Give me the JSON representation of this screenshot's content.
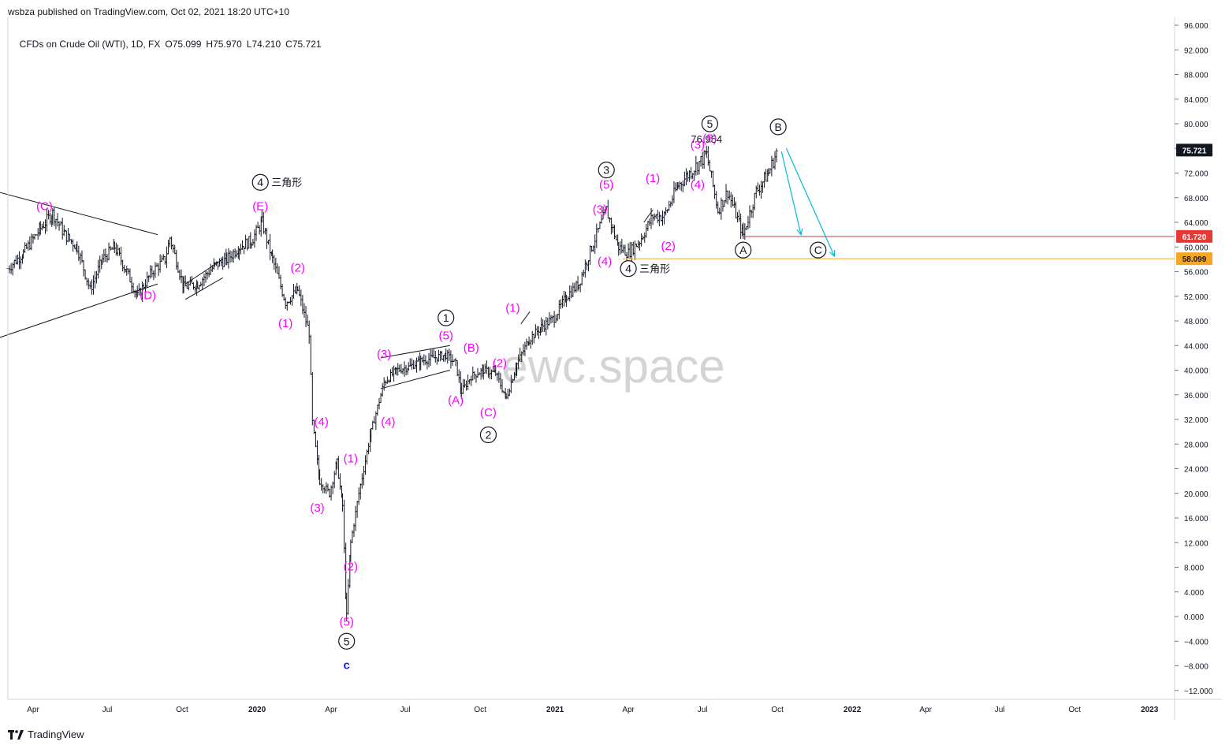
{
  "header": {
    "published": "wsbza published on TradingView.com, Oct 02, 2021 18:20 UTC+10",
    "symbol": "CFDs on Crude Oil (WTI), 1D, FX",
    "open": "O75.099",
    "high": "H75.970",
    "low": "L74.210",
    "close": "C75.721"
  },
  "footer": {
    "brand": "TradingView",
    "brand_icon": "tradingview-logo-icon"
  },
  "watermark": "ewc.space",
  "colors": {
    "candle": "#131722",
    "wave_magenta": "#ff00ff",
    "level_red": "#e53935",
    "level_orange": "#f5a623",
    "arrow_cyan": "#00bcd4",
    "blue_label": "#1a1aff",
    "axis_text": "#131722"
  },
  "chart_data": {
    "type": "line",
    "title": "CFDs on Crude Oil (WTI)",
    "interval": "1D",
    "y_axis": {
      "min": -12,
      "max": 96,
      "ticks": [
        "96.000",
        "92.000",
        "88.000",
        "84.000",
        "80.000",
        "76.000",
        "72.000",
        "68.000",
        "64.000",
        "60.000",
        "56.000",
        "52.000",
        "48.000",
        "44.000",
        "40.000",
        "36.000",
        "32.000",
        "28.000",
        "24.000",
        "20.000",
        "16.000",
        "12.000",
        "8.000",
        "4.000",
        "0.000",
        "−4.000",
        "−8.000",
        "−12.000"
      ],
      "tick_values": [
        96,
        92,
        88,
        84,
        80,
        76,
        72,
        68,
        64,
        60,
        56,
        52,
        48,
        44,
        40,
        36,
        32,
        28,
        24,
        20,
        16,
        12,
        8,
        4,
        0,
        -4,
        -8,
        -12
      ]
    },
    "x_axis": {
      "labels": [
        "Apr",
        "Jul",
        "Oct",
        "2020",
        "Apr",
        "Jul",
        "Oct",
        "2021",
        "Apr",
        "Jul",
        "Oct",
        "2022",
        "Apr",
        "Jul",
        "Oct",
        "2023"
      ],
      "label_dates": [
        "2019-04-01",
        "2019-07-01",
        "2019-10-01",
        "2020-01-01",
        "2020-04-01",
        "2020-07-01",
        "2020-10-01",
        "2021-01-01",
        "2021-04-01",
        "2021-07-01",
        "2021-10-01",
        "2022-01-01",
        "2022-04-01",
        "2022-07-01",
        "2022-10-01",
        "2023-01-01"
      ]
    },
    "series": [
      {
        "x": [
          "2019-03-01",
          "2019-03-20",
          "2019-04-10",
          "2019-04-25",
          "2019-05-10",
          "2019-05-25",
          "2019-06-10",
          "2019-06-25",
          "2019-07-10",
          "2019-07-25",
          "2019-08-07",
          "2019-08-25",
          "2019-09-10",
          "2019-09-16",
          "2019-10-03",
          "2019-10-20",
          "2019-11-10",
          "2019-11-25",
          "2019-12-10",
          "2019-12-25",
          "2020-01-07",
          "2020-01-20",
          "2020-02-05",
          "2020-02-20",
          "2020-03-05",
          "2020-03-09",
          "2020-03-18",
          "2020-03-30",
          "2020-04-08",
          "2020-04-15",
          "2020-04-20",
          "2020-04-25",
          "2020-05-05",
          "2020-05-20",
          "2020-06-05",
          "2020-06-20",
          "2020-07-05",
          "2020-07-20",
          "2020-08-05",
          "2020-08-20",
          "2020-09-01",
          "2020-09-08",
          "2020-09-20",
          "2020-10-05",
          "2020-10-20",
          "2020-11-02",
          "2020-11-15",
          "2020-11-30",
          "2020-12-15",
          "2020-12-31",
          "2021-01-15",
          "2021-01-30",
          "2021-02-15",
          "2021-03-05",
          "2021-03-20",
          "2021-04-01",
          "2021-04-15",
          "2021-05-01",
          "2021-05-15",
          "2021-06-01",
          "2021-06-15",
          "2021-07-06",
          "2021-07-20",
          "2021-08-01",
          "2021-08-20",
          "2021-09-05",
          "2021-09-20",
          "2021-10-01"
        ],
        "y": [
          56.5,
          59,
          63,
          65.5,
          62,
          60,
          53,
          58,
          60,
          56,
          52,
          56,
          58,
          61.5,
          53.5,
          54,
          57,
          58,
          60,
          61,
          64,
          58,
          51,
          53,
          46,
          31.5,
          22,
          20,
          25,
          18,
          0,
          12,
          20,
          30,
          38,
          40,
          40.5,
          41.5,
          42,
          42.5,
          41,
          36.5,
          39,
          40,
          39.5,
          35.5,
          41,
          45,
          47,
          48.5,
          52,
          54,
          60,
          66,
          60,
          59,
          61,
          65,
          65,
          70,
          72,
          75,
          66,
          69,
          62,
          69,
          72,
          75.7
        ]
      }
    ],
    "levels": [
      {
        "label": "61.720",
        "value": 61.72,
        "color": "#e53935"
      },
      {
        "label": "58.099",
        "value": 58.099,
        "color": "#f5a623"
      },
      {
        "label": "75.721",
        "value": 75.721,
        "color": "#131722"
      }
    ],
    "annotations": [
      {
        "text": "76.954",
        "x": "2021-07-06",
        "y": 76.954,
        "style": "plain"
      },
      {
        "text": "(C)",
        "x": "2019-04-15",
        "y": 66,
        "style": "magenta"
      },
      {
        "text": "(D)",
        "x": "2019-08-20",
        "y": 51.5,
        "style": "magenta"
      },
      {
        "text": "(E)",
        "x": "2020-01-05",
        "y": 66,
        "style": "magenta"
      },
      {
        "text": "4",
        "x": "2020-01-05",
        "y": 70.5,
        "style": "circle",
        "suffix": "三角形"
      },
      {
        "text": "(2)",
        "x": "2020-02-20",
        "y": 56,
        "style": "magenta"
      },
      {
        "text": "(1)",
        "x": "2020-02-05",
        "y": 47,
        "style": "magenta"
      },
      {
        "text": "(4)",
        "x": "2020-03-20",
        "y": 31,
        "style": "magenta"
      },
      {
        "text": "(3)",
        "x": "2020-03-15",
        "y": 17,
        "style": "magenta"
      },
      {
        "text": "(1)",
        "x": "2020-04-25",
        "y": 25,
        "style": "magenta"
      },
      {
        "text": "(2)",
        "x": "2020-04-25",
        "y": 7.5,
        "style": "magenta"
      },
      {
        "text": "(5)",
        "x": "2020-04-20",
        "y": -1.5,
        "style": "magenta"
      },
      {
        "text": "5",
        "x": "2020-04-20",
        "y": -4,
        "style": "circle"
      },
      {
        "text": "c",
        "x": "2020-04-20",
        "y": -8.5,
        "style": "blue"
      },
      {
        "text": "(3)",
        "x": "2020-06-05",
        "y": 42,
        "style": "magenta"
      },
      {
        "text": "(4)",
        "x": "2020-06-10",
        "y": 31,
        "style": "magenta"
      },
      {
        "text": "1",
        "x": "2020-08-20",
        "y": 48.5,
        "style": "circle"
      },
      {
        "text": "(5)",
        "x": "2020-08-20",
        "y": 45,
        "style": "magenta"
      },
      {
        "text": "(A)",
        "x": "2020-09-01",
        "y": 34.5,
        "style": "magenta"
      },
      {
        "text": "(B)",
        "x": "2020-09-20",
        "y": 43,
        "style": "magenta"
      },
      {
        "text": "(2)",
        "x": "2020-10-25",
        "y": 40.5,
        "style": "magenta"
      },
      {
        "text": "(C)",
        "x": "2020-10-11",
        "y": 32.5,
        "style": "magenta"
      },
      {
        "text": "2",
        "x": "2020-10-11",
        "y": 29.5,
        "style": "circle"
      },
      {
        "text": "(1)",
        "x": "2020-11-10",
        "y": 49.5,
        "style": "magenta"
      },
      {
        "text": "3",
        "x": "2021-03-05",
        "y": 72.5,
        "style": "circle"
      },
      {
        "text": "(5)",
        "x": "2021-03-05",
        "y": 69.5,
        "style": "magenta"
      },
      {
        "text": "(3)",
        "x": "2021-02-25",
        "y": 65.5,
        "style": "magenta"
      },
      {
        "text": "(4)",
        "x": "2021-03-03",
        "y": 57,
        "style": "magenta"
      },
      {
        "text": "4",
        "x": "2021-04-01",
        "y": 56.5,
        "style": "circle",
        "suffix": "三角形"
      },
      {
        "text": "(1)",
        "x": "2021-05-01",
        "y": 70.5,
        "style": "magenta"
      },
      {
        "text": "(2)",
        "x": "2021-05-20",
        "y": 59.5,
        "style": "magenta"
      },
      {
        "text": "(4)",
        "x": "2021-06-25",
        "y": 69.5,
        "style": "magenta"
      },
      {
        "text": "(3)",
        "x": "2021-06-25",
        "y": 76,
        "style": "magenta"
      },
      {
        "text": "(5)",
        "x": "2021-07-10",
        "y": 77,
        "style": "magenta"
      },
      {
        "text": "5",
        "x": "2021-07-10",
        "y": 80,
        "style": "circle"
      },
      {
        "text": "A",
        "x": "2021-08-20",
        "y": 59.5,
        "style": "circle"
      },
      {
        "text": "B",
        "x": "2021-10-02",
        "y": 79.5,
        "style": "circle"
      },
      {
        "text": "C",
        "x": "2021-11-20",
        "y": 59.5,
        "style": "circle"
      }
    ]
  }
}
